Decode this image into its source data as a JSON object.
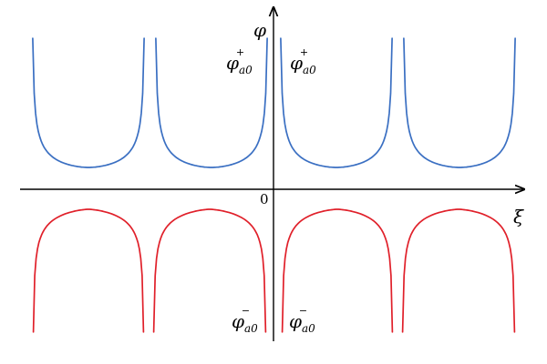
{
  "axes": {
    "x_label": "ξ",
    "y_label": "φ",
    "origin_label": "0"
  },
  "labels": {
    "upper_left": {
      "main": "φ",
      "sub": "a0",
      "sup": "+"
    },
    "upper_right": {
      "main": "φ",
      "sub": "a0",
      "sup": "+"
    },
    "lower_left": {
      "main": "φ",
      "sub": "a0",
      "sup": "−"
    },
    "lower_right": {
      "main": "φ",
      "sub": "a0",
      "sup": "−"
    }
  },
  "colors": {
    "upper_curves": "#3a6fc2",
    "lower_curves": "#e0202a",
    "axes": "#000000"
  }
}
